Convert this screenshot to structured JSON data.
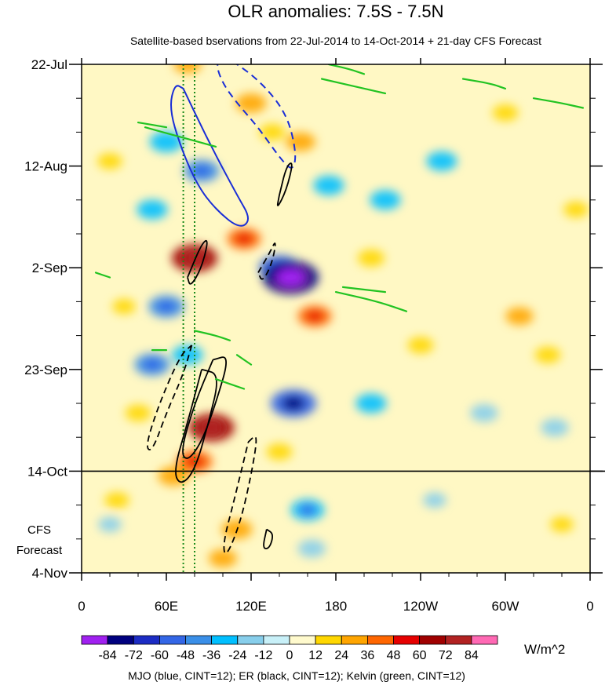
{
  "chart_data": {
    "type": "heatmap",
    "title": "OLR anomalies: 7.5S - 7.5N",
    "subtitle": "Satellite-based bservations from 22-Jul-2014 to 14-Oct-2014 + 21-day CFS Forecast",
    "x_ticks": [
      "0",
      "60E",
      "120E",
      "180",
      "120W",
      "60W",
      "0"
    ],
    "x_tick_values": [
      0,
      60,
      120,
      180,
      240,
      300,
      360
    ],
    "xlim": [
      0,
      360
    ],
    "y_ticks": [
      "22-Jul",
      "12-Aug",
      "2-Sep",
      "23-Sep",
      "14-Oct",
      "4-Nov"
    ],
    "y_tick_days": [
      0,
      21,
      42,
      63,
      84,
      105
    ],
    "ylim_days": [
      0,
      105
    ],
    "forecast_start_day": 84,
    "forecast_label_line1": "CFS",
    "forecast_label_line2": "Forecast",
    "colorbar": {
      "labels": [
        "-84",
        "-72",
        "-60",
        "-48",
        "-36",
        "-24",
        "-12",
        "0",
        "12",
        "24",
        "36",
        "48",
        "60",
        "72",
        "84"
      ],
      "levels": [
        -84,
        -72,
        -60,
        -48,
        -36,
        -24,
        -12,
        0,
        12,
        24,
        36,
        48,
        60,
        72,
        84
      ],
      "colors": [
        "#a020f0",
        "#00007f",
        "#1c2cc4",
        "#3366e6",
        "#3a8fe8",
        "#00bfff",
        "#87ceeb",
        "#c8f0f8",
        "#fffacd",
        "#ffd700",
        "#ffa500",
        "#ff6600",
        "#e60000",
        "#a00000",
        "#b22222",
        "#ff69b4"
      ],
      "units": "W/m^2"
    },
    "footer": "MJO (blue, CINT=12); ER (black, CINT=12); Kelvin (green, CINT=12)",
    "reference_lines_lon": [
      72,
      80
    ],
    "anomaly_features": [
      {
        "lon": 75,
        "day": 0,
        "value": 24
      },
      {
        "lon": 120,
        "day": 8,
        "value": 30
      },
      {
        "lon": 135,
        "day": 14,
        "value": 20
      },
      {
        "lon": 20,
        "day": 20,
        "value": 18
      },
      {
        "lon": 60,
        "day": 16,
        "value": -35
      },
      {
        "lon": 85,
        "day": 22,
        "value": -40
      },
      {
        "lon": 50,
        "day": 30,
        "value": -30
      },
      {
        "lon": 175,
        "day": 25,
        "value": -30
      },
      {
        "lon": 215,
        "day": 28,
        "value": -30
      },
      {
        "lon": 255,
        "day": 20,
        "value": -30
      },
      {
        "lon": 155,
        "day": 16,
        "value": 28
      },
      {
        "lon": 80,
        "day": 40,
        "value": 60
      },
      {
        "lon": 115,
        "day": 36,
        "value": 36
      },
      {
        "lon": 140,
        "day": 42,
        "value": -50
      },
      {
        "lon": 148,
        "day": 44,
        "value": -80
      },
      {
        "lon": 165,
        "day": 52,
        "value": 36
      },
      {
        "lon": 60,
        "day": 50,
        "value": -40
      },
      {
        "lon": 75,
        "day": 60,
        "value": -30
      },
      {
        "lon": 50,
        "day": 62,
        "value": -40
      },
      {
        "lon": 92,
        "day": 75,
        "value": 60
      },
      {
        "lon": 80,
        "day": 82,
        "value": 40
      },
      {
        "lon": 65,
        "day": 85,
        "value": 30
      },
      {
        "lon": 150,
        "day": 70,
        "value": -60
      },
      {
        "lon": 110,
        "day": 96,
        "value": 30
      },
      {
        "lon": 100,
        "day": 102,
        "value": 25
      },
      {
        "lon": 160,
        "day": 92,
        "value": -36
      },
      {
        "lon": 163,
        "day": 100,
        "value": -24
      },
      {
        "lon": 140,
        "day": 80,
        "value": 20
      },
      {
        "lon": 205,
        "day": 70,
        "value": -30
      },
      {
        "lon": 285,
        "day": 72,
        "value": -24
      },
      {
        "lon": 335,
        "day": 75,
        "value": -24
      },
      {
        "lon": 310,
        "day": 52,
        "value": 24
      },
      {
        "lon": 40,
        "day": 72,
        "value": 20
      },
      {
        "lon": 350,
        "day": 30,
        "value": 18
      },
      {
        "lon": 330,
        "day": 60,
        "value": 20
      },
      {
        "lon": 25,
        "day": 90,
        "value": 18
      },
      {
        "lon": 205,
        "day": 40,
        "value": 22
      },
      {
        "lon": 240,
        "day": 58,
        "value": 20
      },
      {
        "lon": 300,
        "day": 10,
        "value": 20
      },
      {
        "lon": 250,
        "day": 90,
        "value": -15
      },
      {
        "lon": 20,
        "day": 95,
        "value": -15
      },
      {
        "lon": 340,
        "day": 95,
        "value": 15
      },
      {
        "lon": 30,
        "day": 50,
        "value": 15
      }
    ],
    "contours": {
      "mjo_blue": [
        {
          "sign": "neg",
          "points": [
            [
              72,
              5
            ],
            [
              90,
              16
            ],
            [
              110,
              27
            ],
            [
              120,
              32
            ],
            [
              112,
              34
            ],
            [
              95,
              30
            ],
            [
              82,
              25
            ],
            [
              70,
              17
            ],
            [
              62,
              9
            ],
            [
              66,
              4
            ]
          ]
        },
        {
          "sign": "pos",
          "points": [
            [
              100,
              -2
            ],
            [
              125,
              3
            ],
            [
              145,
              10
            ],
            [
              152,
              18
            ],
            [
              150,
              22
            ],
            [
              142,
              20
            ],
            [
              125,
              13
            ],
            [
              110,
              8
            ],
            [
              100,
              4
            ],
            [
              95,
              0
            ]
          ]
        }
      ],
      "er_black": [
        {
          "sign": "pos",
          "points": [
            [
              125,
              43
            ],
            [
              133,
              39
            ],
            [
              138,
              36
            ],
            [
              135,
              41
            ],
            [
              128,
              45
            ]
          ]
        },
        {
          "sign": "neg",
          "points": [
            [
              140,
              27
            ],
            [
              145,
              21
            ],
            [
              150,
              20
            ],
            [
              145,
              26
            ],
            [
              138,
              30
            ]
          ]
        },
        {
          "sign": "neg",
          "points": [
            [
              75,
              44
            ],
            [
              85,
              37
            ],
            [
              90,
              36
            ],
            [
              85,
              42
            ],
            [
              77,
              46
            ]
          ]
        },
        {
          "sign": "pos",
          "points": [
            [
              78,
              58
            ],
            [
              72,
              64
            ],
            [
              60,
              72
            ],
            [
              50,
              80
            ],
            [
              45,
              79
            ],
            [
              55,
              70
            ],
            [
              70,
              60
            ]
          ]
        },
        {
          "sign": "neg",
          "points": [
            [
              93,
              61
            ],
            [
              105,
              60
            ],
            [
              95,
              70
            ],
            [
              85,
              78
            ],
            [
              75,
              82
            ],
            [
              70,
              80
            ],
            [
              80,
              70
            ]
          ]
        },
        {
          "sign": "neg",
          "points": [
            [
              85,
              63
            ],
            [
              98,
              64
            ],
            [
              90,
              74
            ],
            [
              80,
              84
            ],
            [
              70,
              87
            ],
            [
              65,
              84
            ],
            [
              75,
              74
            ]
          ]
        },
        {
          "sign": "pos",
          "points": [
            [
              118,
              78
            ],
            [
              125,
              76
            ],
            [
              120,
              85
            ],
            [
              112,
              95
            ],
            [
              102,
              102
            ],
            [
              100,
              99
            ],
            [
              108,
              90
            ]
          ]
        },
        {
          "sign": "neg",
          "points": [
            [
              131,
              96
            ],
            [
              136,
              97
            ],
            [
              133,
              100
            ],
            [
              128,
              100
            ]
          ]
        }
      ],
      "kelvin_green": [
        {
          "points": [
            [
              170,
              3
            ],
            [
              200,
              5
            ],
            [
              215,
              6
            ]
          ]
        },
        {
          "points": [
            [
              175,
              0
            ],
            [
              190,
              1
            ],
            [
              200,
              2
            ]
          ]
        },
        {
          "points": [
            [
              270,
              3
            ],
            [
              290,
              4
            ],
            [
              300,
              5
            ]
          ]
        },
        {
          "points": [
            [
              320,
              7
            ],
            [
              340,
              8
            ],
            [
              355,
              9
            ]
          ]
        },
        {
          "points": [
            [
              40,
              12
            ],
            [
              60,
              13
            ]
          ]
        },
        {
          "points": [
            [
              45,
              13
            ],
            [
              70,
              15
            ],
            [
              95,
              17
            ]
          ]
        },
        {
          "points": [
            [
              180,
              47
            ],
            [
              210,
              49
            ],
            [
              230,
              51
            ]
          ]
        },
        {
          "points": [
            [
              185,
              46
            ],
            [
              215,
              47
            ]
          ]
        },
        {
          "points": [
            [
              80,
              55
            ],
            [
              95,
              56
            ],
            [
              105,
              57
            ]
          ]
        },
        {
          "points": [
            [
              10,
              43
            ],
            [
              20,
              44
            ]
          ]
        },
        {
          "points": [
            [
              50,
              59
            ],
            [
              60,
              59
            ]
          ]
        },
        {
          "points": [
            [
              110,
              60
            ],
            [
              120,
              62
            ]
          ]
        },
        {
          "points": [
            [
              95,
              65
            ],
            [
              115,
              67
            ]
          ]
        }
      ]
    }
  }
}
